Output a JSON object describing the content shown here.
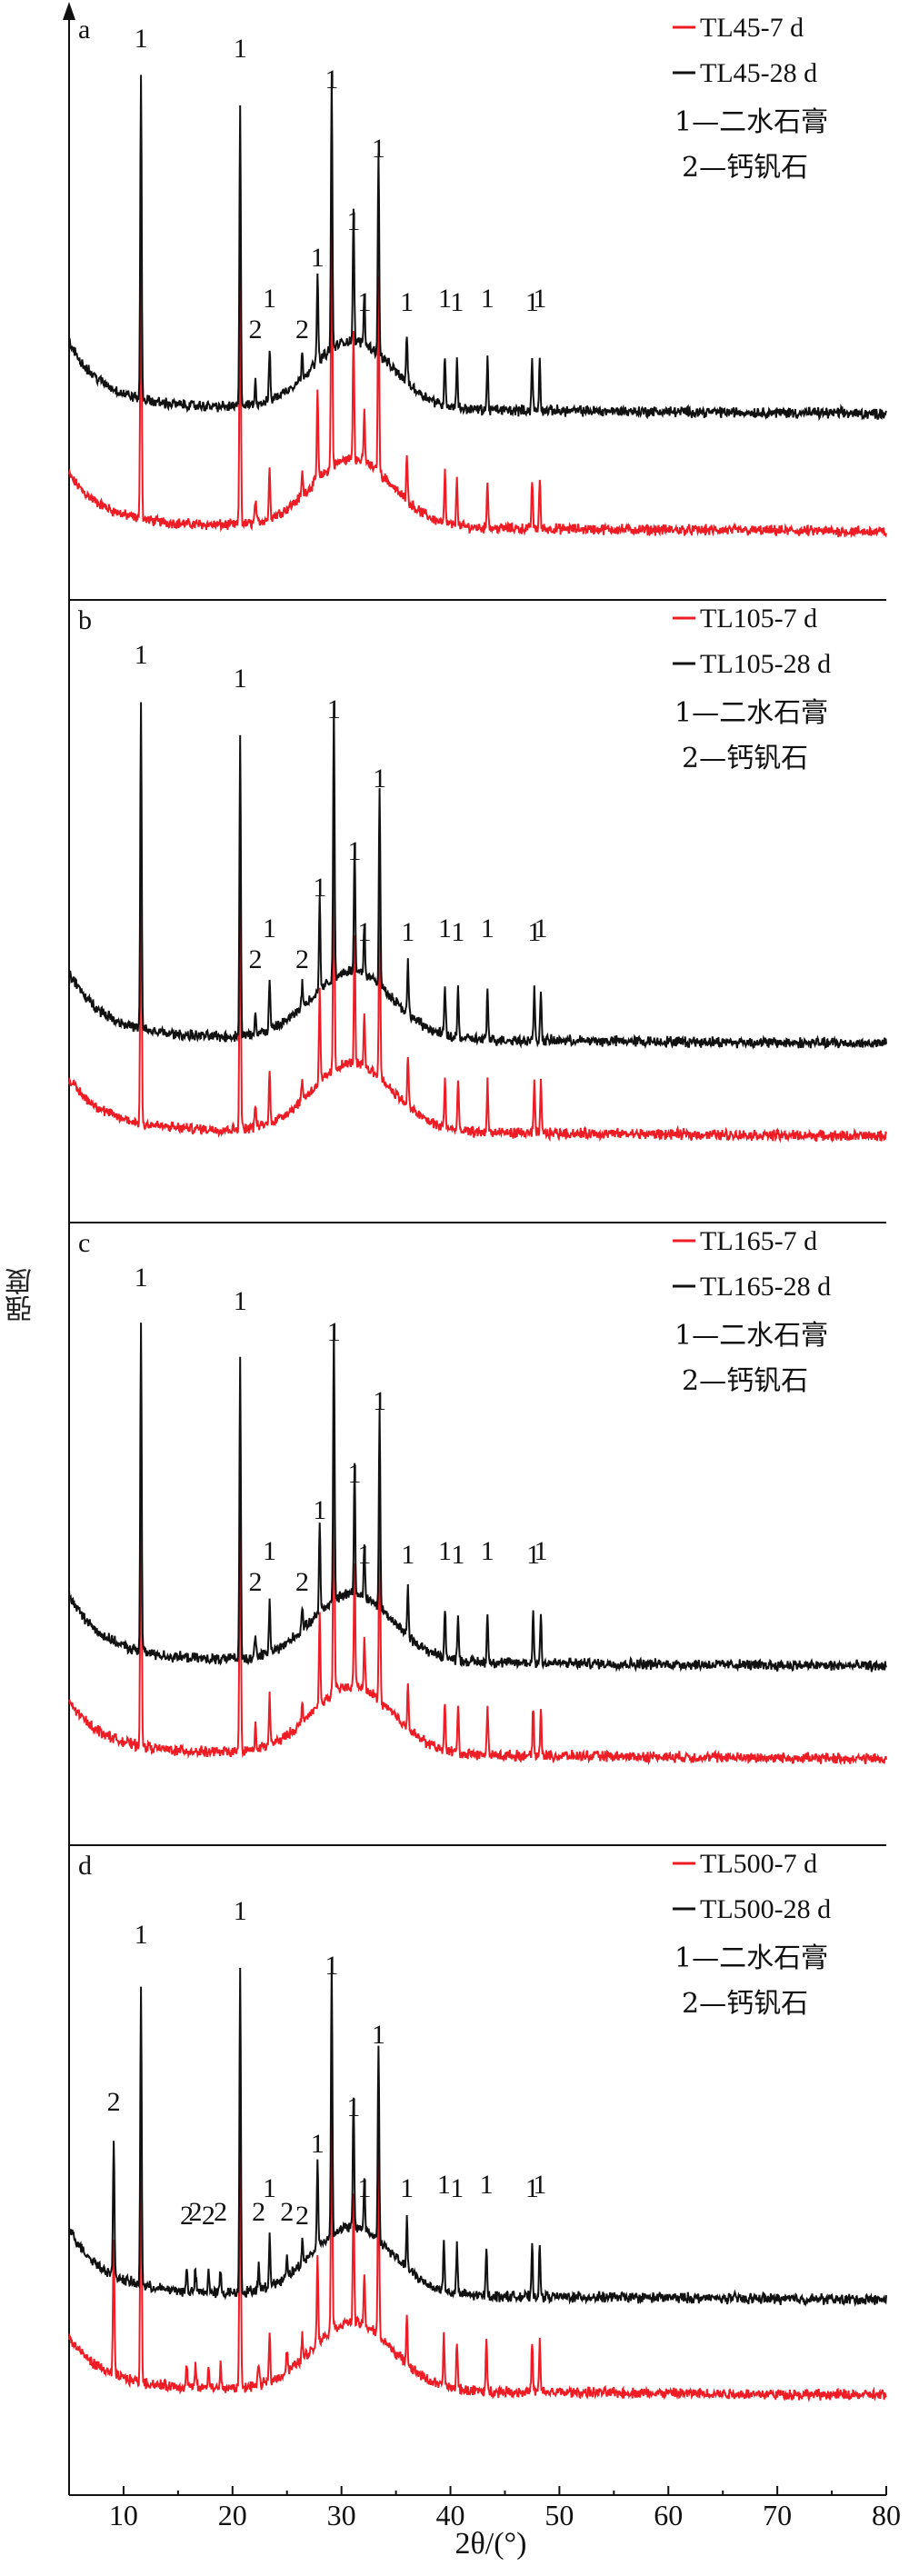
{
  "figure": {
    "ylabel": "强度",
    "xlabel": "2θ/(°)",
    "xlim": [
      5,
      80
    ],
    "xticks": [
      "10",
      "20",
      "30",
      "40",
      "50",
      "60",
      "70",
      "80"
    ],
    "colors": {
      "7d": "#ee1c25",
      "28d": "#111111"
    }
  },
  "chart_data": [
    {
      "type": "line",
      "panel": "a",
      "legend": [
        "TL45-7 d",
        "TL45-28 d"
      ],
      "notes": [
        "1—二水石膏",
        "2—钙钒石"
      ],
      "series": [
        {
          "name": "TL45-7 d"
        },
        {
          "name": "TL45-28 d"
        }
      ],
      "peaks": [
        {
          "x": 11.6,
          "label": "1"
        },
        {
          "x": 20.7,
          "label": "1"
        },
        {
          "x": 22.1,
          "label": "2"
        },
        {
          "x": 23.4,
          "label": "1"
        },
        {
          "x": 26.4,
          "label": "2"
        },
        {
          "x": 27.8,
          "label": "1"
        },
        {
          "x": 29.1,
          "label": "1"
        },
        {
          "x": 31.1,
          "label": "1"
        },
        {
          "x": 32.1,
          "label": "1"
        },
        {
          "x": 33.4,
          "label": "1"
        },
        {
          "x": 36.0,
          "label": "1"
        },
        {
          "x": 39.5,
          "label": "1"
        },
        {
          "x": 40.6,
          "label": "1"
        },
        {
          "x": 43.4,
          "label": "1"
        },
        {
          "x": 47.5,
          "label": "1"
        },
        {
          "x": 48.2,
          "label": "1"
        }
      ],
      "ylim": [
        0,
        1
      ]
    },
    {
      "type": "line",
      "panel": "b",
      "legend": [
        "TL105-7 d",
        "TL105-28 d"
      ],
      "notes": [
        "1—二水石膏",
        "2—钙钒石"
      ],
      "series": [
        {
          "name": "TL105-7 d"
        },
        {
          "name": "TL105-28 d"
        }
      ],
      "peaks": [
        {
          "x": 11.6,
          "label": "1"
        },
        {
          "x": 20.7,
          "label": "1"
        },
        {
          "x": 22.1,
          "label": "2"
        },
        {
          "x": 23.4,
          "label": "1"
        },
        {
          "x": 26.4,
          "label": "2"
        },
        {
          "x": 28.0,
          "label": "1"
        },
        {
          "x": 29.3,
          "label": "1"
        },
        {
          "x": 31.2,
          "label": "1"
        },
        {
          "x": 32.1,
          "label": "1"
        },
        {
          "x": 33.5,
          "label": "1"
        },
        {
          "x": 36.1,
          "label": "1"
        },
        {
          "x": 39.5,
          "label": "1"
        },
        {
          "x": 40.7,
          "label": "1"
        },
        {
          "x": 43.4,
          "label": "1"
        },
        {
          "x": 47.7,
          "label": "1"
        },
        {
          "x": 48.3,
          "label": "1"
        }
      ],
      "ylim": [
        0,
        1
      ]
    },
    {
      "type": "line",
      "panel": "c",
      "legend": [
        "TL165-7 d",
        "TL165-28 d"
      ],
      "notes": [
        "1—二水石膏",
        "2—钙钒石"
      ],
      "series": [
        {
          "name": "TL165-7 d"
        },
        {
          "name": "TL165-28 d"
        }
      ],
      "peaks": [
        {
          "x": 11.6,
          "label": "1"
        },
        {
          "x": 20.7,
          "label": "1"
        },
        {
          "x": 22.1,
          "label": "2"
        },
        {
          "x": 23.4,
          "label": "1"
        },
        {
          "x": 26.4,
          "label": "2"
        },
        {
          "x": 28.0,
          "label": "1"
        },
        {
          "x": 29.3,
          "label": "1"
        },
        {
          "x": 31.2,
          "label": "1"
        },
        {
          "x": 32.1,
          "label": "1"
        },
        {
          "x": 33.5,
          "label": "1"
        },
        {
          "x": 36.1,
          "label": "1"
        },
        {
          "x": 39.5,
          "label": "1"
        },
        {
          "x": 40.7,
          "label": "1"
        },
        {
          "x": 43.4,
          "label": "1"
        },
        {
          "x": 47.6,
          "label": "1"
        },
        {
          "x": 48.3,
          "label": "1"
        }
      ],
      "ylim": [
        0,
        1
      ]
    },
    {
      "type": "line",
      "panel": "d",
      "legend": [
        "TL500-7 d",
        "TL500-28 d"
      ],
      "notes": [
        "1—二水石膏",
        "2—钙钒石"
      ],
      "series": [
        {
          "name": "TL500-7 d"
        },
        {
          "name": "TL500-28 d"
        }
      ],
      "peaks": [
        {
          "x": 9.1,
          "label": "2"
        },
        {
          "x": 11.6,
          "label": "1"
        },
        {
          "x": 15.8,
          "label": "2"
        },
        {
          "x": 16.6,
          "label": "2"
        },
        {
          "x": 17.8,
          "label": "2"
        },
        {
          "x": 18.9,
          "label": "2"
        },
        {
          "x": 20.7,
          "label": "1"
        },
        {
          "x": 22.4,
          "label": "2"
        },
        {
          "x": 23.4,
          "label": "1"
        },
        {
          "x": 25.0,
          "label": "2"
        },
        {
          "x": 26.4,
          "label": "2"
        },
        {
          "x": 27.8,
          "label": "1"
        },
        {
          "x": 29.1,
          "label": "1"
        },
        {
          "x": 31.1,
          "label": "1"
        },
        {
          "x": 32.1,
          "label": "1"
        },
        {
          "x": 33.4,
          "label": "1"
        },
        {
          "x": 36.0,
          "label": "1"
        },
        {
          "x": 39.4,
          "label": "1"
        },
        {
          "x": 40.6,
          "label": "1"
        },
        {
          "x": 43.3,
          "label": "1"
        },
        {
          "x": 47.5,
          "label": "1"
        },
        {
          "x": 48.2,
          "label": "1"
        }
      ],
      "ylim": [
        0,
        1
      ]
    }
  ]
}
